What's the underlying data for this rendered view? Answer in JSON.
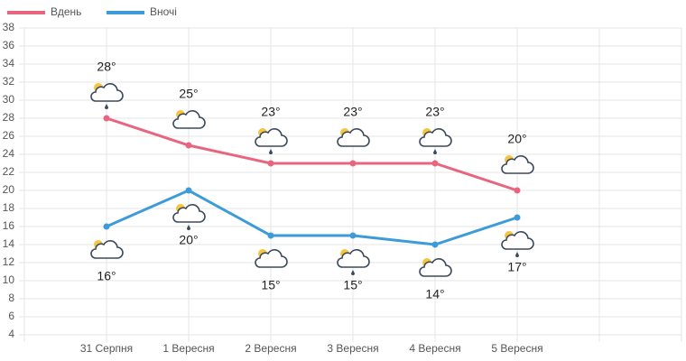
{
  "chart_data": {
    "type": "line",
    "categories": [
      null,
      "31 Серпня",
      "1 Вересня",
      "2 Вересня",
      "3 Вересня",
      "4 Вересня",
      "5 Вересня",
      null,
      null
    ],
    "series": [
      {
        "name": "Вдень",
        "color": "#e8657f",
        "values": [
          null,
          28,
          25,
          23,
          23,
          23,
          20,
          null,
          null
        ],
        "value_labels": [
          null,
          "28°",
          "25°",
          "23°",
          "23°",
          "23°",
          "20°",
          null,
          null
        ]
      },
      {
        "name": "Вночі",
        "color": "#3d9bd9",
        "values": [
          null,
          16,
          20,
          15,
          15,
          14,
          17,
          null,
          null
        ],
        "value_labels": [
          null,
          "16°",
          "20°",
          "15°",
          "15°",
          "14°",
          "17°",
          null,
          null
        ]
      }
    ],
    "ylim": [
      4,
      38
    ],
    "yticks": [
      4,
      6,
      8,
      10,
      12,
      14,
      16,
      18,
      20,
      22,
      24,
      26,
      28,
      30,
      32,
      34,
      36,
      38
    ],
    "grid": true
  }
}
